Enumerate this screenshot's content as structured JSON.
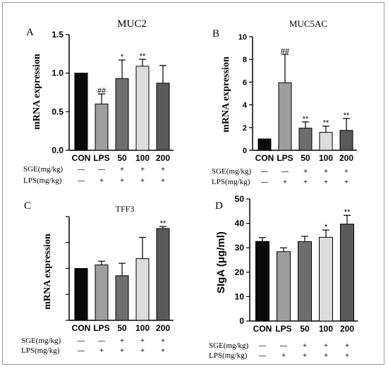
{
  "chart_data": [
    {
      "panel": "A",
      "type": "bar",
      "title": "MUC2",
      "ylabel": "mRNA expression",
      "xlabel": "",
      "categories": [
        "CON",
        "LPS",
        "50",
        "100",
        "200"
      ],
      "values": [
        1.0,
        0.6,
        0.93,
        1.09,
        0.87
      ],
      "errors": [
        0,
        0.13,
        0.24,
        0.09,
        0.23
      ],
      "annotations": [
        "",
        "##",
        "*",
        "**",
        ""
      ],
      "ylim": [
        0,
        1.5
      ],
      "yticks": [
        "0.0",
        "0.5",
        "1.0",
        "1.5"
      ],
      "colors": [
        "#0a0a0a",
        "#9e9e9e",
        "#6e6e6e",
        "#dcdcdc",
        "#5a5a5a"
      ],
      "treatment_rows": [
        {
          "label": "SGE(mg/kg)",
          "marks": [
            "—",
            "—",
            "+",
            "+",
            "+"
          ]
        },
        {
          "label": "LPS(mg/kg)",
          "marks": [
            "—",
            "+",
            "+",
            "+",
            "+"
          ]
        }
      ]
    },
    {
      "panel": "B",
      "type": "bar",
      "title": "MUC5AC",
      "ylabel": "mRNA expression",
      "xlabel": "",
      "categories": [
        "CON",
        "LPS",
        "50",
        "100",
        "200"
      ],
      "values": [
        1.0,
        5.95,
        1.95,
        1.58,
        1.75
      ],
      "errors": [
        0,
        2.5,
        0.55,
        0.55,
        1.05
      ],
      "annotations": [
        "",
        "##",
        "**",
        "**",
        "**"
      ],
      "ylim": [
        0,
        10
      ],
      "yticks": [
        "0",
        "2",
        "4",
        "6",
        "8",
        "10"
      ],
      "colors": [
        "#0a0a0a",
        "#9e9e9e",
        "#6e6e6e",
        "#dcdcdc",
        "#5a5a5a"
      ],
      "treatment_rows": [
        {
          "label": "SGE(mg/kg)",
          "marks": [
            "—",
            "—",
            "+",
            "+",
            "+"
          ]
        },
        {
          "label": "LPS(mg/kg)",
          "marks": [
            "—",
            "+",
            "+",
            "+",
            "+"
          ]
        }
      ]
    },
    {
      "panel": "C",
      "type": "bar",
      "title": "TFF3",
      "ylabel": "mRNA expression",
      "xlabel": "",
      "categories": [
        "CON",
        "LPS",
        "50",
        "100",
        "200"
      ],
      "values": [
        1.0,
        1.07,
        0.86,
        1.19,
        1.77
      ],
      "errors": [
        0,
        0.07,
        0.24,
        0.41,
        0.04
      ],
      "annotations": [
        "",
        "",
        "",
        "",
        "**"
      ],
      "ylim": [
        0,
        2.0
      ],
      "yticks": [
        "",
        "",
        "",
        "",
        ""
      ],
      "colors": [
        "#0a0a0a",
        "#9e9e9e",
        "#6e6e6e",
        "#dcdcdc",
        "#5a5a5a"
      ],
      "treatment_rows": [
        {
          "label": "SGE(mg/kg)",
          "marks": [
            "—",
            "—",
            "+",
            "+",
            "+"
          ]
        },
        {
          "label": "LPS(mg/kg)",
          "marks": [
            "—",
            "+",
            "+",
            "+",
            "+"
          ]
        }
      ]
    },
    {
      "panel": "D",
      "type": "bar",
      "title": "",
      "ylabel": "SIgA (μg/ml)",
      "xlabel": "",
      "categories": [
        "CON",
        "LPS",
        "50",
        "100",
        "200"
      ],
      "values": [
        32.6,
        28.4,
        32.5,
        34.3,
        39.7
      ],
      "errors": [
        1.6,
        1.6,
        2.2,
        3.0,
        3.6
      ],
      "annotations": [
        "",
        "",
        "",
        "*",
        "**"
      ],
      "ylim": [
        0,
        50
      ],
      "yticks": [
        "0",
        "10",
        "20",
        "30",
        "40",
        "50"
      ],
      "colors": [
        "#0a0a0a",
        "#9e9e9e",
        "#6e6e6e",
        "#dcdcdc",
        "#5a5a5a"
      ],
      "treatment_rows": [
        {
          "label": "SGE(mg/kg)",
          "marks": [
            "—",
            "—",
            "+",
            "+",
            "+"
          ]
        },
        {
          "label": "LPS(mg/kg)",
          "marks": [
            "—",
            "+",
            "+",
            "+",
            "+"
          ]
        }
      ]
    }
  ]
}
